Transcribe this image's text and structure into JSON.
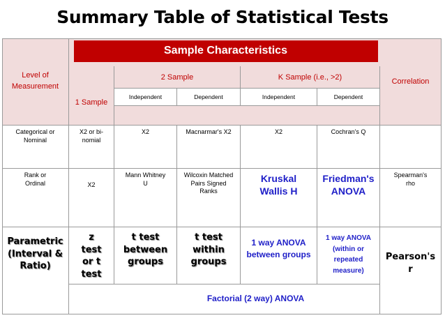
{
  "title": "Summary Table of Statistical Tests",
  "header": {
    "level": "Level of Measurement",
    "sample_characteristics": "Sample Characteristics",
    "one_sample": "1 Sample",
    "two_sample": "2 Sample",
    "k_sample": "K Sample (i.e., >2)",
    "correlation": "Correlation",
    "independent": "Independent",
    "dependent": "Dependent"
  },
  "rows": {
    "categorical": {
      "level": "Categorical or Nominal",
      "one": "X2 or bi-nomial",
      "two_ind": "X2",
      "two_dep": "Macnarmar's X2",
      "k_ind": "X2",
      "k_dep": "Cochran's Q",
      "corr": ""
    },
    "rank": {
      "level": "Rank or Ordinal",
      "one": "X2",
      "two_ind": "Mann Whitney U",
      "two_dep": "Wilcoxin Matched Pairs Signed Ranks",
      "k_ind": "Kruskal Wallis H",
      "k_dep": "Friedman's ANOVA",
      "corr": "Spearman's rho"
    },
    "parametric": {
      "level": "Parametric (Interval & Ratio)",
      "one": "z test or t test",
      "two_ind": "t test between groups",
      "two_dep": "t test within groups",
      "k_ind": "1 way ANOVA between groups",
      "k_dep": "1 way ANOVA (within or repeated measure)",
      "corr": "Pearson's r",
      "factorial": "Factorial (2 way) ANOVA"
    }
  }
}
